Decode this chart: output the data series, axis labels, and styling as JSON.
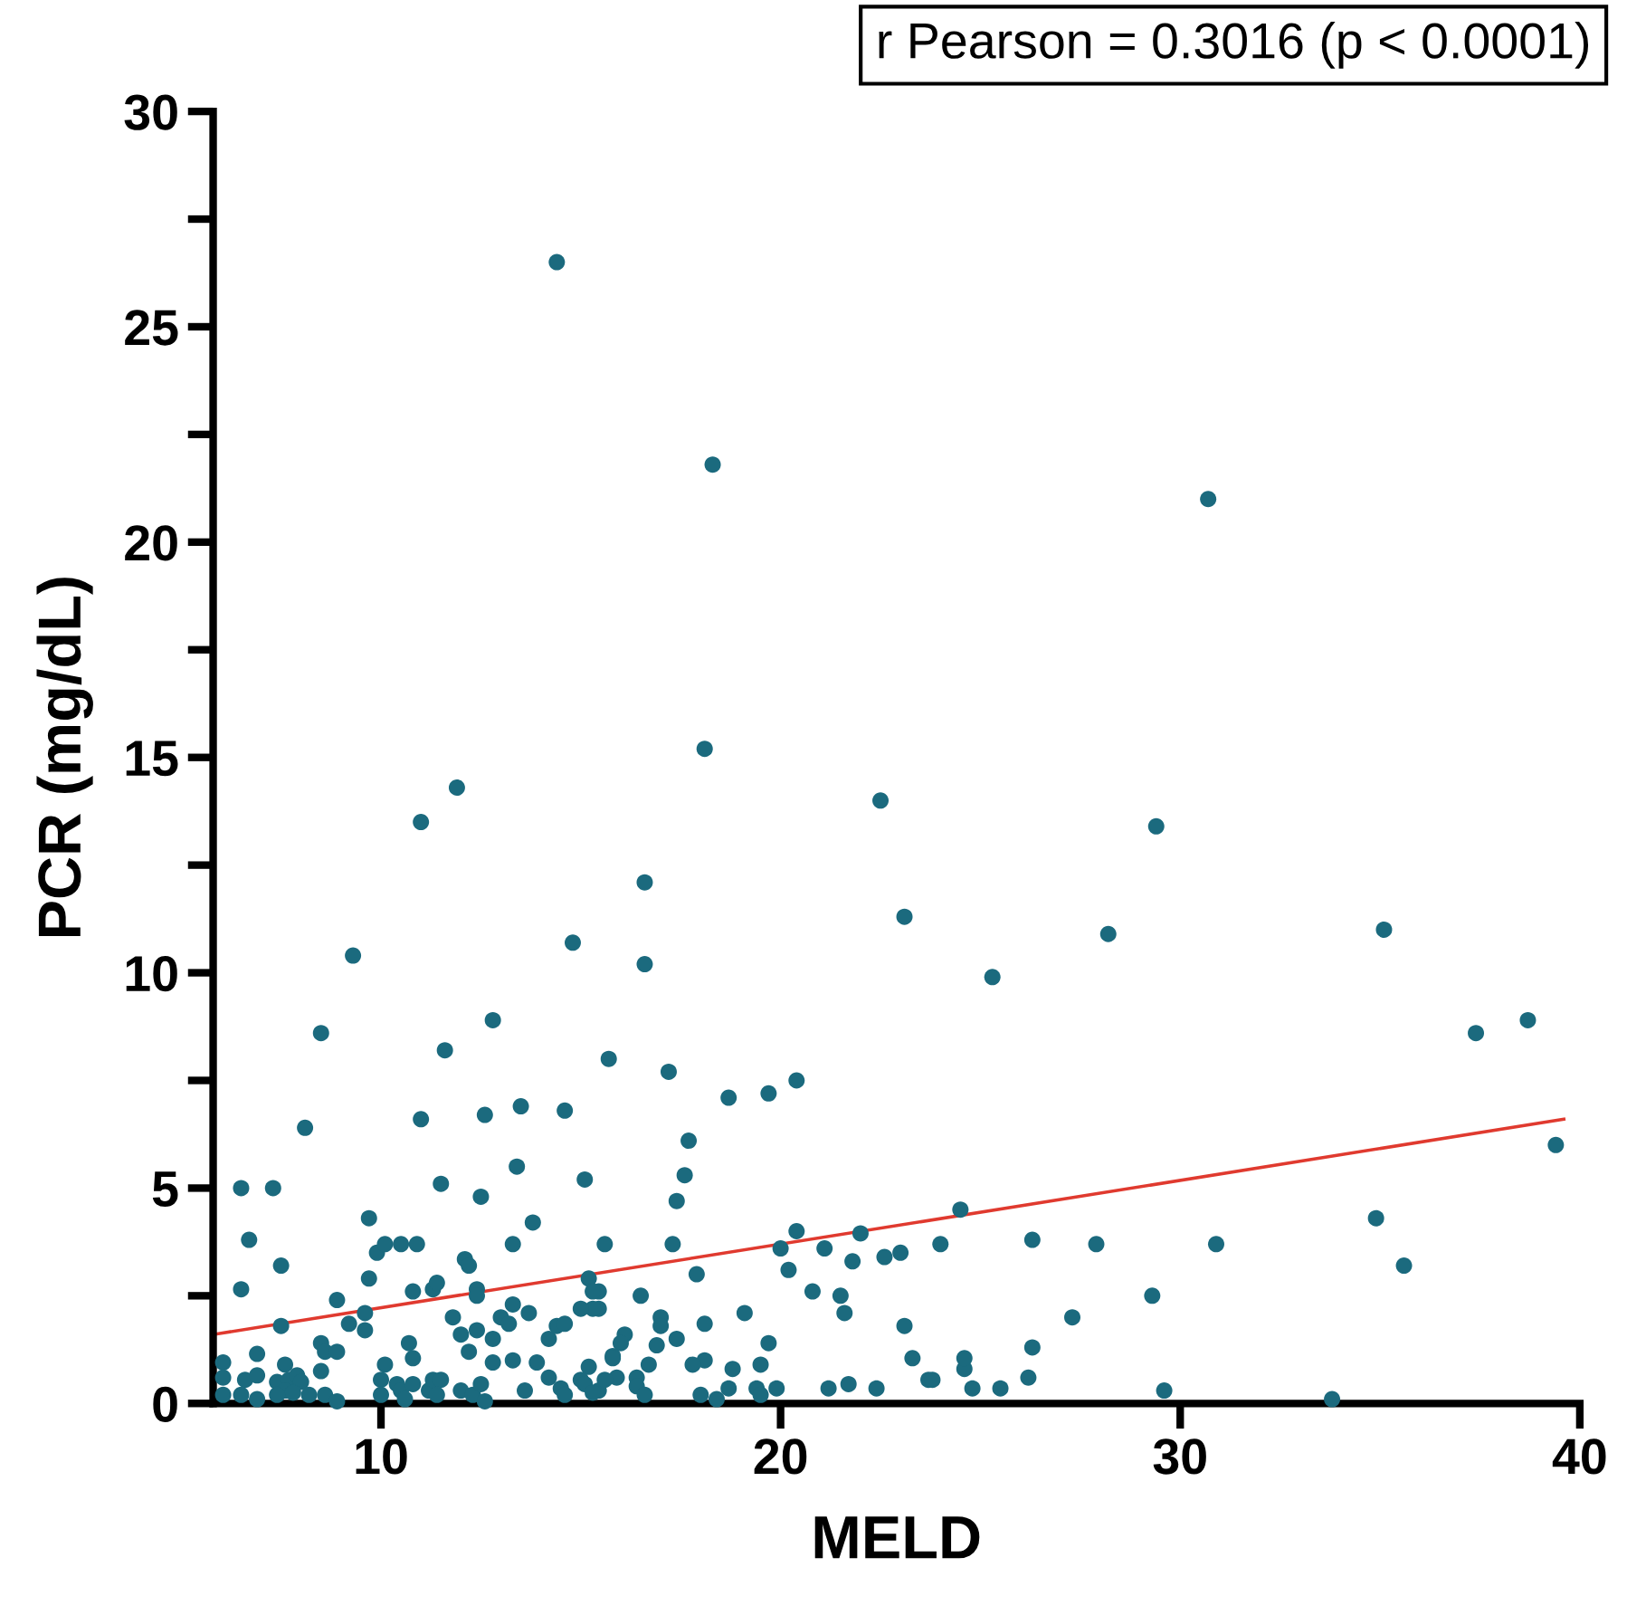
{
  "chart_data": {
    "type": "scatter",
    "xlabel": "MELD",
    "ylabel": "PCR (mg/dL)",
    "annotations": [
      "r Pearson = 0.3016 (p < 0.0001)"
    ],
    "xlim": [
      5.8,
      40
    ],
    "xticks": [
      10,
      20,
      30,
      40
    ],
    "ylim": [
      0,
      30
    ],
    "yticks": [
      0,
      {
        "value": 2.5,
        "label": null
      },
      5,
      {
        "value": 7.5,
        "label": null
      },
      10,
      {
        "value": 12.5,
        "label": null
      },
      15,
      {
        "value": 17.5,
        "label": null
      },
      20,
      {
        "value": 22.5,
        "label": null
      },
      25,
      {
        "value": 27.5,
        "label": null
      },
      30
    ],
    "grid": false,
    "legend": false,
    "series": [
      {
        "color": "#1b6a7e",
        "marker": "circle",
        "x": [
          14.4,
          18.3,
          30.7,
          18.1,
          11.9,
          22.5,
          11.0,
          29.4,
          16.6,
          23.1,
          35.1,
          28.2,
          14.8,
          9.3,
          16.6,
          25.3,
          12.8,
          38.7,
          8.5,
          37.4,
          11.6,
          15.7,
          17.2,
          20.4,
          19.7,
          18.7,
          13.5,
          12.6,
          14.6,
          11.0,
          8.1,
          17.7,
          39.4,
          17.6,
          13.4,
          15.1,
          11.5,
          6.5,
          7.3,
          24.5,
          34.9,
          35.6,
          26.3,
          27.9,
          30.9,
          24.0,
          29.3,
          27.3,
          26.3,
          26.2,
          29.6,
          33.8,
          24.6,
          25.5,
          24.8,
          23.3,
          23.7,
          23.8,
          23.0,
          22.6,
          22.0,
          21.1,
          21.8,
          20.0,
          20.4,
          22.4,
          21.2,
          21.7,
          17.4,
          15.6,
          17.3,
          17.9,
          20.2,
          20.8,
          21.5,
          21.6,
          23.1,
          16.5,
          15.45,
          15.45,
          17.0,
          17.0,
          17.4,
          16.9,
          16.1,
          16.0,
          15.8,
          16.7,
          15.9,
          16.4,
          16.4,
          16.6,
          15.45,
          18.1,
          19.1,
          19.7,
          19.5,
          18.8,
          18.1,
          17.8,
          18.7,
          18.0,
          18.4,
          19.4,
          19.5,
          19.9,
          24.6,
          12.5,
          13.8,
          6.7,
          9.7,
          9.9,
          10.1,
          10.5,
          10.9,
          12.1,
          12.2,
          13.3,
          7.5,
          6.5,
          9.7,
          10.8,
          11.3,
          11.4,
          12.4,
          12.4,
          13.3,
          13.7,
          15.2,
          15.3,
          15.3,
          15.0,
          8.9,
          7.5,
          9.2,
          9.6,
          9.6,
          11.8,
          13.0,
          13.2,
          12.0,
          12.4,
          12.8,
          14.2,
          14.4,
          14.6,
          8.5,
          8.6,
          8.9,
          6.9,
          6.05,
          10.7,
          10.8,
          12.2,
          12.8,
          13.3,
          13.9,
          15.2,
          15.8,
          6.05,
          6.6,
          6.9,
          7.6,
          7.4,
          7.7,
          7.9,
          8.0,
          7.6,
          7.8,
          8.2,
          8.6,
          8.9,
          6.05,
          6.5,
          6.9,
          7.4,
          8.5,
          10.1,
          10.0,
          10.4,
          10.5,
          10.0,
          10.6,
          10.8,
          11.2,
          11.3,
          11.5,
          11.4,
          12.0,
          12.3,
          12.5,
          12.6,
          13.6,
          14.2,
          14.5,
          14.6,
          15.0,
          15.1,
          15.3,
          15.6
        ],
        "values": [
          26.5,
          21.8,
          21.0,
          15.2,
          14.3,
          14.0,
          13.5,
          13.4,
          12.1,
          11.3,
          11.0,
          10.9,
          10.7,
          10.4,
          10.2,
          9.9,
          8.9,
          8.9,
          8.6,
          8.6,
          8.2,
          8.0,
          7.7,
          7.5,
          7.2,
          7.1,
          6.9,
          6.7,
          6.8,
          6.6,
          6.4,
          6.1,
          6.0,
          5.3,
          5.5,
          5.2,
          5.1,
          5.0,
          5.0,
          4.5,
          4.3,
          3.2,
          3.8,
          3.7,
          3.7,
          3.7,
          2.5,
          2.0,
          1.3,
          0.6,
          0.3,
          0.1,
          0.8,
          0.35,
          0.35,
          1.05,
          0.55,
          0.55,
          3.5,
          3.4,
          3.95,
          3.6,
          3.3,
          3.6,
          4.0,
          0.35,
          0.35,
          0.45,
          4.7,
          3.7,
          3.7,
          3.0,
          3.1,
          2.6,
          2.5,
          2.1,
          1.8,
          2.5,
          2.6,
          2.2,
          2.0,
          1.8,
          1.5,
          1.35,
          1.6,
          1.4,
          1.1,
          0.9,
          0.6,
          0.6,
          0.4,
          0.2,
          0.3,
          1.85,
          2.1,
          1.4,
          0.9,
          0.8,
          1.0,
          0.9,
          0.35,
          0.2,
          0.1,
          0.35,
          0.2,
          0.35,
          1.05,
          4.8,
          4.2,
          3.8,
          4.3,
          3.5,
          3.7,
          3.7,
          3.7,
          3.35,
          3.2,
          3.7,
          3.2,
          2.65,
          2.9,
          2.6,
          2.65,
          2.8,
          2.65,
          2.5,
          2.3,
          2.1,
          2.9,
          2.6,
          2.2,
          2.2,
          2.4,
          1.8,
          1.85,
          2.1,
          1.7,
          2.0,
          2.0,
          1.85,
          1.6,
          1.7,
          1.5,
          1.5,
          1.8,
          1.85,
          1.4,
          1.2,
          1.2,
          1.15,
          0.95,
          1.4,
          1.05,
          1.2,
          0.95,
          1.0,
          0.95,
          0.85,
          1.05,
          0.6,
          0.55,
          0.65,
          0.9,
          0.5,
          0.55,
          0.65,
          0.5,
          0.3,
          0.25,
          0.2,
          0.2,
          0.05,
          0.2,
          0.2,
          0.1,
          0.2,
          0.75,
          0.9,
          0.55,
          0.45,
          0.3,
          0.2,
          0.1,
          0.45,
          0.3,
          0.55,
          0.55,
          0.2,
          0.3,
          0.2,
          0.45,
          0.05,
          0.3,
          0.6,
          0.35,
          0.2,
          0.55,
          0.45,
          0.25,
          0.55
        ]
      },
      {
        "type": "line",
        "color": "#e03a2f",
        "line_style": "solid",
        "x": [
          5.8,
          39.6
        ],
        "values": [
          1.6,
          6.6
        ]
      }
    ]
  }
}
